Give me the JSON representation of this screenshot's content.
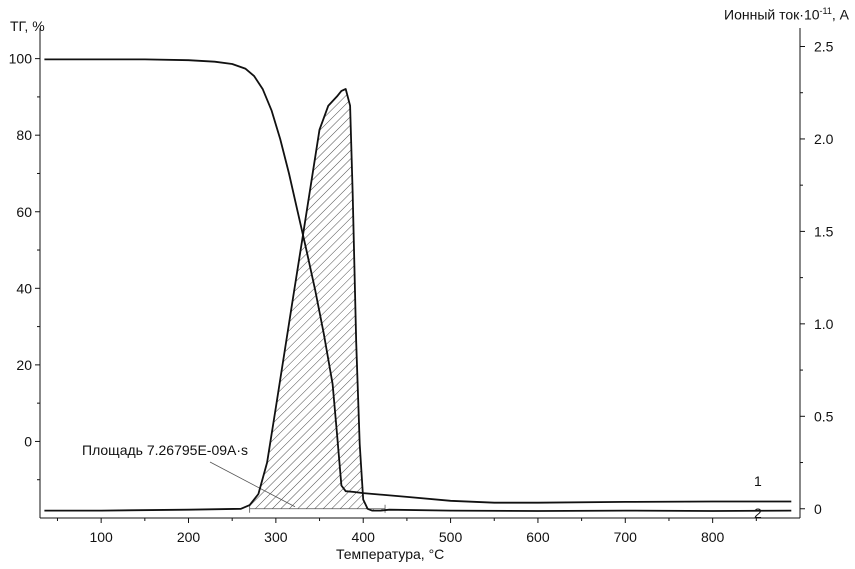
{
  "chart_data": {
    "type": "line",
    "xlabel": "Температура, °C",
    "ylabel_left": "ТГ, %",
    "ylabel_right_prefix": "Ионный ток·10",
    "ylabel_right_exponent": "-11",
    "ylabel_right_suffix": ", А",
    "xlim": [
      30,
      900
    ],
    "ylim_left": [
      -20,
      108
    ],
    "ylim_right": [
      -0.05,
      2.6
    ],
    "x_ticks": [
      100,
      200,
      300,
      400,
      500,
      600,
      700,
      800
    ],
    "x_tick_labels": [
      "100",
      "200",
      "300",
      "400",
      "500",
      "600",
      "700",
      "800"
    ],
    "y_left_ticks": [
      100,
      80,
      60,
      40,
      20,
      0
    ],
    "y_left_tick_labels": [
      "100",
      "80",
      "60",
      "40",
      "20",
      "0"
    ],
    "y_right_ticks": [
      2.5,
      2.0,
      1.5,
      1.0,
      0.5,
      0
    ],
    "y_right_tick_labels": [
      "2.5",
      "2.0",
      "1.5",
      "1.0",
      "0.5",
      "0"
    ],
    "annotation": "Площадь 7.26795E-09A·s",
    "curve_labels": [
      "1",
      "2"
    ],
    "integration_limits": [
      270,
      425
    ],
    "series": [
      {
        "id": "1",
        "axis": "left",
        "x": [
          35,
          100,
          150,
          200,
          230,
          250,
          265,
          275,
          285,
          295,
          305,
          315,
          325,
          335,
          345,
          355,
          365,
          370,
          375,
          380,
          390,
          400,
          450,
          500,
          550,
          600,
          700,
          800,
          890
        ],
        "y": [
          99.8,
          99.8,
          99.8,
          99.6,
          99.2,
          98.6,
          97.4,
          95.5,
          92.0,
          86.5,
          79.0,
          70.0,
          60.0,
          50.0,
          39.5,
          28.0,
          15.0,
          2.0,
          -11.5,
          -13.0,
          -13.2,
          -13.5,
          -14.5,
          -15.5,
          -16.0,
          -16.0,
          -15.8,
          -15.7,
          -15.7
        ]
      },
      {
        "id": "2",
        "axis": "right",
        "x": [
          35,
          100,
          200,
          260,
          270,
          280,
          290,
          300,
          310,
          320,
          330,
          340,
          350,
          360,
          370,
          375,
          380,
          385,
          388,
          392,
          396,
          400,
          405,
          410,
          420,
          430,
          500,
          600,
          700,
          800,
          890
        ],
        "y": [
          -0.01,
          -0.01,
          -0.005,
          0.0,
          0.02,
          0.08,
          0.25,
          0.55,
          0.85,
          1.15,
          1.45,
          1.75,
          2.05,
          2.18,
          2.23,
          2.26,
          2.27,
          2.18,
          1.7,
          0.9,
          0.35,
          0.05,
          0.0,
          -0.01,
          -0.01,
          -0.005,
          -0.01,
          -0.012,
          -0.01,
          -0.012,
          -0.01
        ]
      }
    ]
  }
}
